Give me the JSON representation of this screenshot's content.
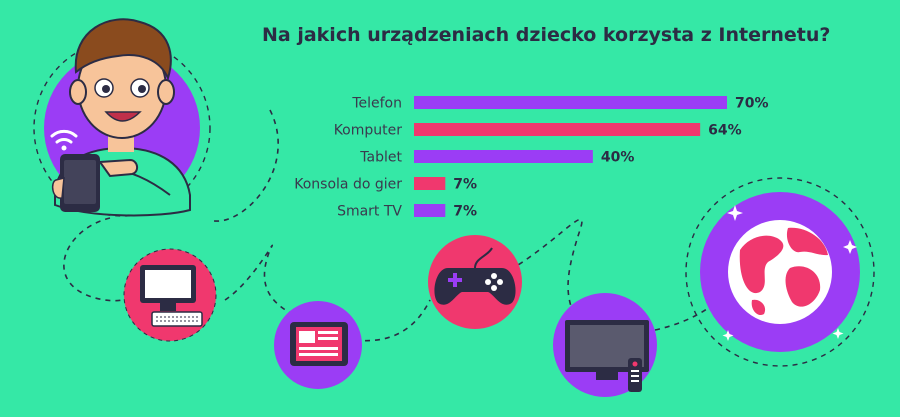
{
  "title": "Na jakich urządzeniach dziecko korzysta z Internetu?",
  "colors": {
    "background": "#35e8a6",
    "purple": "#9b3df5",
    "red": "#f0386e",
    "dark": "#2c2c44",
    "skin": "#f7c49a",
    "hair": "#8a4b1e"
  },
  "icons": [
    "wifi-icon",
    "smartphone-icon",
    "computer-icon",
    "tablet-icon",
    "gamepad-icon",
    "tv-icon",
    "remote-icon",
    "globe-icon"
  ],
  "chart_data": {
    "type": "bar",
    "orientation": "horizontal",
    "title": "Na jakich urządzeniach dziecko korzysta z Internetu?",
    "categories": [
      "Telefon",
      "Komputer",
      "Tablet",
      "Konsola do gier",
      "Smart TV"
    ],
    "values": [
      70,
      64,
      40,
      7,
      7
    ],
    "value_labels": [
      "70%",
      "64%",
      "40%",
      "7%",
      "7%"
    ],
    "bar_colors": [
      "#9b3df5",
      "#f0386e",
      "#9b3df5",
      "#f0386e",
      "#9b3df5"
    ],
    "unit": "%",
    "xlim": [
      0,
      100
    ],
    "grid": false,
    "legend": "none"
  }
}
